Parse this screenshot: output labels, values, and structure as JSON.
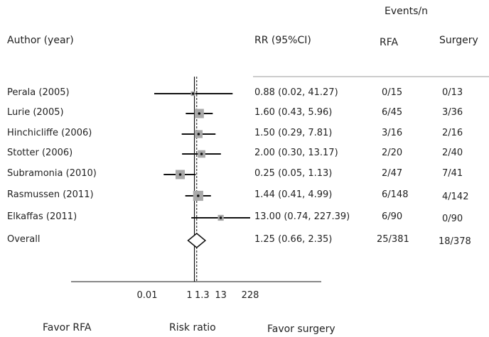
{
  "chart_data": {
    "type": "forest",
    "columns": {
      "author": "Author (year)",
      "rr": "RR (95%CI)",
      "events_group": "Events/n",
      "rfa": "RFA",
      "surgery": "Surgery"
    },
    "studies": [
      {
        "author": "Perala (2005)",
        "rr": 0.88,
        "lo": 0.02,
        "hi": 41.27,
        "label": "0.88 (0.02, 41.27)",
        "rfa": "0/15",
        "surgery": "0/13",
        "weight": 0.2
      },
      {
        "author": "Lurie (2005)",
        "rr": 1.6,
        "lo": 0.43,
        "hi": 5.96,
        "label": "1.60 (0.43, 5.96)",
        "rfa": "6/45",
        "surgery": "3/36",
        "weight": 0.75
      },
      {
        "author": "Hinchicliffe (2006)",
        "rr": 1.5,
        "lo": 0.29,
        "hi": 7.81,
        "label": "1.50 (0.29, 7.81)",
        "rfa": "3/16",
        "surgery": "2/16",
        "weight": 0.6
      },
      {
        "author": "Stotter (2006)",
        "rr": 2.0,
        "lo": 0.3,
        "hi": 13.17,
        "label": "2.00 (0.30, 13.17)",
        "rfa": "2/20",
        "surgery": "2/40",
        "weight": 0.55
      },
      {
        "author": "Subramonia (2010)",
        "rr": 0.25,
        "lo": 0.05,
        "hi": 1.13,
        "label": "0.25 (0.05, 1.13)",
        "rfa": "2/47",
        "surgery": "7/41",
        "weight": 0.75
      },
      {
        "author": "Rasmussen (2011)",
        "rr": 1.44,
        "lo": 0.41,
        "hi": 4.99,
        "label": "1.44 (0.41, 4.99)",
        "rfa": "6/148",
        "surgery": "4/142",
        "weight": 0.85
      },
      {
        "author": "Elkaffas (2011)",
        "rr": 13.0,
        "lo": 0.74,
        "hi": 227.39,
        "label": "13.00 (0.74, 227.39)",
        "rfa": "6/90",
        "surgery": "0/90",
        "weight": 0.35
      }
    ],
    "overall": {
      "author": "Overall",
      "rr": 1.25,
      "lo": 0.66,
      "hi": 2.35,
      "label": "1.25 (0.66, 2.35)",
      "rfa": "25/381",
      "surgery": "18/378"
    },
    "x_scale": "log",
    "x_ticks": [
      {
        "value": 0.01,
        "label": "0.01"
      },
      {
        "value": 1,
        "label": "1"
      },
      {
        "value": 1.3,
        "label": "1.3"
      },
      {
        "value": 13,
        "label": "13"
      },
      {
        "value": 228,
        "label": "228"
      }
    ],
    "reference_line": 1,
    "pooled_line": 1.25,
    "footer": {
      "left": "Favor RFA",
      "center": "Risk ratio",
      "right": "Favor surgery"
    },
    "colors": {
      "line": "#111111",
      "square": "#a9a9a9",
      "divider": "#cccccc"
    }
  }
}
